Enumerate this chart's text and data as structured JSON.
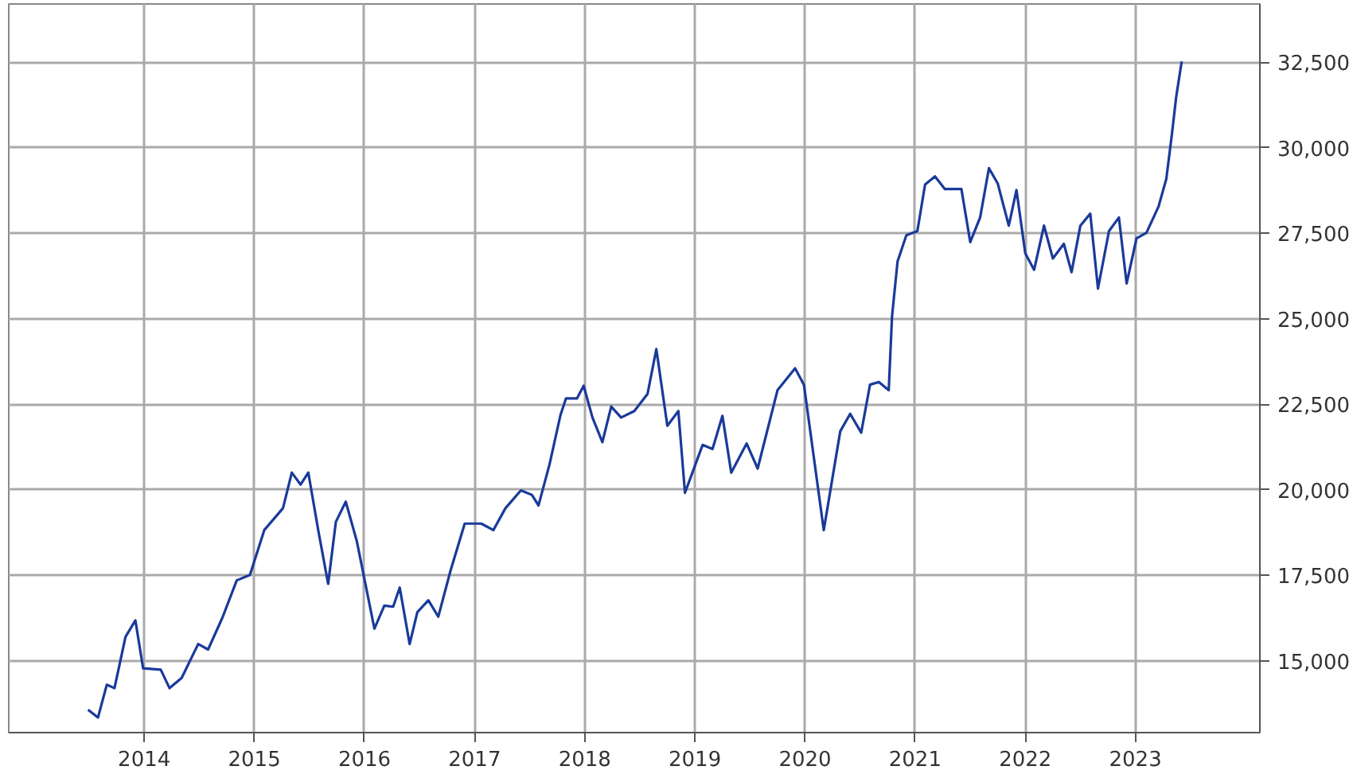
{
  "chart_data": {
    "type": "line",
    "x": [
      2013.49,
      2013.58,
      2013.66,
      2013.73,
      2013.83,
      2013.92,
      2013.99,
      2014.15,
      2014.23,
      2014.34,
      2014.49,
      2014.58,
      2014.71,
      2014.84,
      2014.96,
      2015.09,
      2015.26,
      2015.34,
      2015.42,
      2015.49,
      2015.58,
      2015.67,
      2015.74,
      2015.83,
      2015.93,
      2016.09,
      2016.18,
      2016.26,
      2016.32,
      2016.41,
      2016.48,
      2016.58,
      2016.67,
      2016.78,
      2016.91,
      2017.06,
      2017.17,
      2017.28,
      2017.42,
      2017.52,
      2017.58,
      2017.68,
      2017.78,
      2017.83,
      2017.93,
      2017.99,
      2018.07,
      2018.16,
      2018.24,
      2018.33,
      2018.45,
      2018.57,
      2018.65,
      2018.75,
      2018.85,
      2018.91,
      2019.07,
      2019.16,
      2019.25,
      2019.33,
      2019.47,
      2019.57,
      2019.75,
      2019.91,
      2019.99,
      2020.17,
      2020.32,
      2020.41,
      2020.51,
      2020.59,
      2020.67,
      2020.76,
      2020.79,
      2020.84,
      2020.92,
      2021.02,
      2021.09,
      2021.18,
      2021.27,
      2021.42,
      2021.5,
      2021.59,
      2021.67,
      2021.75,
      2021.85,
      2021.92,
      2022.0,
      2022.08,
      2022.17,
      2022.25,
      2022.35,
      2022.42,
      2022.5,
      2022.59,
      2022.66,
      2022.76,
      2022.85,
      2022.92,
      2023.01,
      2023.1,
      2023.21,
      2023.28,
      2023.33,
      2023.37,
      2023.42
    ],
    "series": [
      {
        "color": "#1a3a9a",
        "values": [
          13570,
          13340,
          14300,
          14200,
          15700,
          16180,
          14780,
          14740,
          14200,
          14500,
          15490,
          15330,
          16260,
          17350,
          17510,
          18820,
          19460,
          20500,
          20150,
          20500,
          18820,
          17250,
          19060,
          19650,
          18500,
          15940,
          16610,
          16580,
          17140,
          15490,
          16420,
          16770,
          16290,
          17620,
          19010,
          19010,
          18820,
          19460,
          19980,
          19850,
          19540,
          20740,
          22190,
          22670,
          22670,
          23040,
          22110,
          21390,
          22430,
          22110,
          22300,
          22800,
          24110,
          21870,
          22300,
          19910,
          21310,
          21190,
          22160,
          20500,
          21350,
          20620,
          22910,
          23550,
          23070,
          18820,
          21710,
          22220,
          21670,
          23070,
          23150,
          22910,
          25070,
          26670,
          27440,
          27560,
          28920,
          29160,
          28790,
          28790,
          27240,
          27960,
          29400,
          28950,
          27720,
          28760,
          26910,
          26430,
          27720,
          26760,
          27190,
          26360,
          27720,
          28070,
          25880,
          27560,
          27960,
          26030,
          27350,
          27510,
          28280,
          29080,
          30360,
          31480,
          32520
        ]
      }
    ],
    "xlim": [
      2012.77,
      2024.13
    ],
    "xticks": [
      2014,
      2015,
      2016,
      2017,
      2018,
      2019,
      2020,
      2021,
      2022,
      2023
    ],
    "ylim": [
      12900,
      34200
    ],
    "yticks": [
      {
        "value": 15000,
        "label": "15,000"
      },
      {
        "value": 17500,
        "label": "17,500"
      },
      {
        "value": 20000,
        "label": "20,000"
      },
      {
        "value": 22500,
        "label": "22,500"
      },
      {
        "value": 25000,
        "label": "25,000"
      },
      {
        "value": 27500,
        "label": "27,500"
      },
      {
        "value": 30000,
        "label": "30,000"
      },
      {
        "value": 32500,
        "label": "32,500"
      }
    ],
    "grid": true,
    "marker": "none",
    "line_style": "solid"
  }
}
